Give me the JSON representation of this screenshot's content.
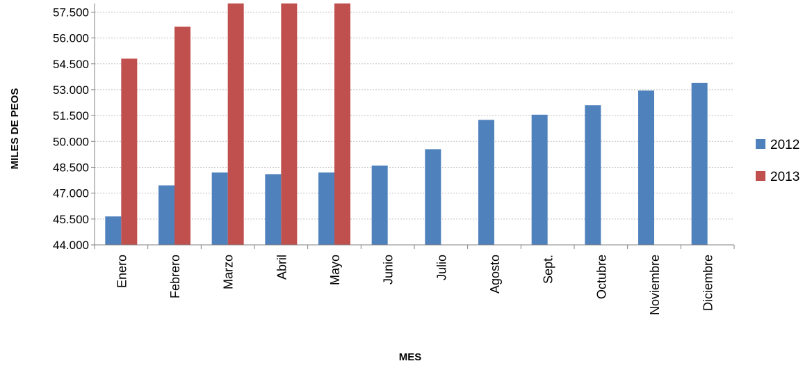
{
  "chart_data": {
    "type": "bar",
    "xlabel": "MES",
    "ylabel": "MILES DE PEOS",
    "ylim": [
      44000,
      58000
    ],
    "yticks": [
      44000,
      45500,
      47000,
      48500,
      50000,
      51500,
      53000,
      54500,
      56000,
      57500
    ],
    "ytick_labels": [
      "44.000",
      "45.500",
      "47.000",
      "48.500",
      "50.000",
      "51.500",
      "53.000",
      "54.500",
      "56.000",
      "57.500"
    ],
    "categories": [
      "Enero",
      "Febrero",
      "Marzo",
      "Abril",
      "Mayo",
      "Junio",
      "Julio",
      "Agosto",
      "Sept.",
      "Octubre",
      "Noviembre",
      "Diciembre"
    ],
    "series": [
      {
        "name": "2012",
        "color": "#4f81bd",
        "values": [
          45650,
          47450,
          48200,
          48100,
          48200,
          48600,
          49550,
          51250,
          51550,
          52100,
          52950,
          53400
        ]
      },
      {
        "name": "2013",
        "color": "#c0504d",
        "values": [
          54800,
          56650,
          58000,
          58000,
          58000,
          null,
          null,
          null,
          null,
          null,
          null,
          null
        ]
      }
    ],
    "grid": true,
    "legend_position": "right"
  }
}
